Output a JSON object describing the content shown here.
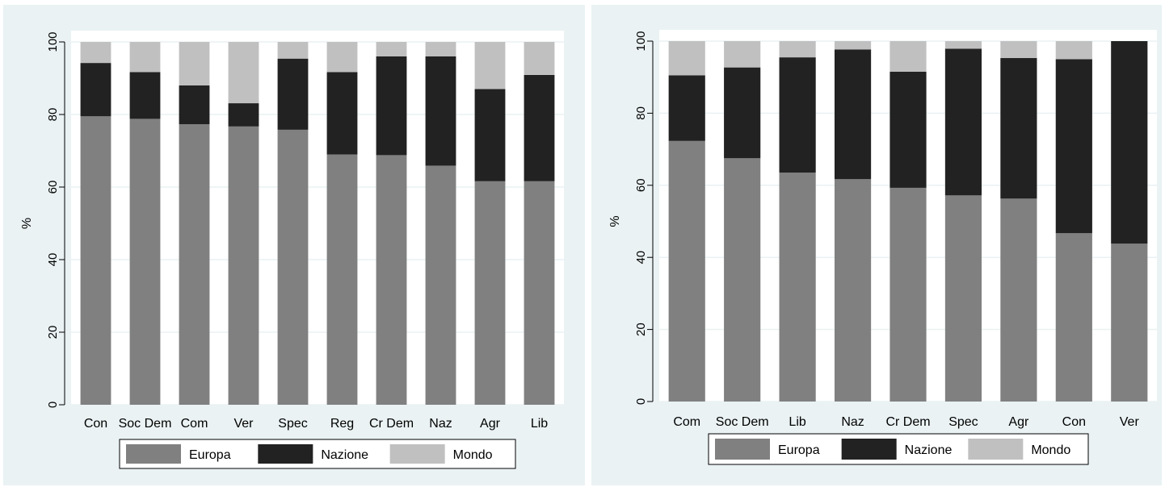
{
  "colors": {
    "Europa": "#808080",
    "Nazione": "#222222",
    "Mondo": "#c0c0c0",
    "panel_bg": "#eaf2f3",
    "plot_bg": "#ffffff",
    "grid": "#eaf2f3"
  },
  "chart_data": [
    {
      "type": "bar",
      "stacked": true,
      "ylabel": "%",
      "ylim": [
        0,
        100
      ],
      "yticks": [
        0,
        20,
        40,
        60,
        80,
        100
      ],
      "grid": true,
      "legend_position": "bottom",
      "categories": [
        "Con",
        "Soc Dem",
        "Com",
        "Ver",
        "Spec",
        "Reg",
        "Cr Dem",
        "Naz",
        "Agr",
        "Lib"
      ],
      "series": [
        {
          "name": "Europa",
          "values": [
            79.5,
            78.8,
            77.3,
            76.7,
            75.8,
            69.0,
            68.8,
            65.9,
            61.6,
            61.6
          ]
        },
        {
          "name": "Nazione",
          "values": [
            14.7,
            12.9,
            10.7,
            6.4,
            19.6,
            22.7,
            27.2,
            30.1,
            25.4,
            29.3
          ]
        },
        {
          "name": "Mondo",
          "values": [
            5.8,
            8.3,
            12.0,
            16.9,
            4.6,
            8.3,
            4.0,
            4.0,
            13.0,
            9.1
          ]
        }
      ]
    },
    {
      "type": "bar",
      "stacked": true,
      "ylabel": "%",
      "ylim": [
        0,
        100
      ],
      "yticks": [
        0,
        20,
        40,
        60,
        80,
        100
      ],
      "grid": true,
      "legend_position": "bottom",
      "categories": [
        "Com",
        "Soc Dem",
        "Lib",
        "Naz",
        "Cr Dem",
        "Spec",
        "Agr",
        "Con",
        "Ver"
      ],
      "series": [
        {
          "name": "Europa",
          "values": [
            72.3,
            67.5,
            63.5,
            61.7,
            59.3,
            57.2,
            56.3,
            46.7,
            43.8
          ]
        },
        {
          "name": "Nazione",
          "values": [
            18.2,
            25.2,
            32.0,
            36.0,
            32.2,
            40.7,
            39.0,
            48.3,
            56.2
          ]
        },
        {
          "name": "Mondo",
          "values": [
            9.5,
            7.3,
            4.5,
            2.3,
            8.5,
            2.1,
            4.7,
            5.0,
            0.0
          ]
        }
      ]
    }
  ]
}
